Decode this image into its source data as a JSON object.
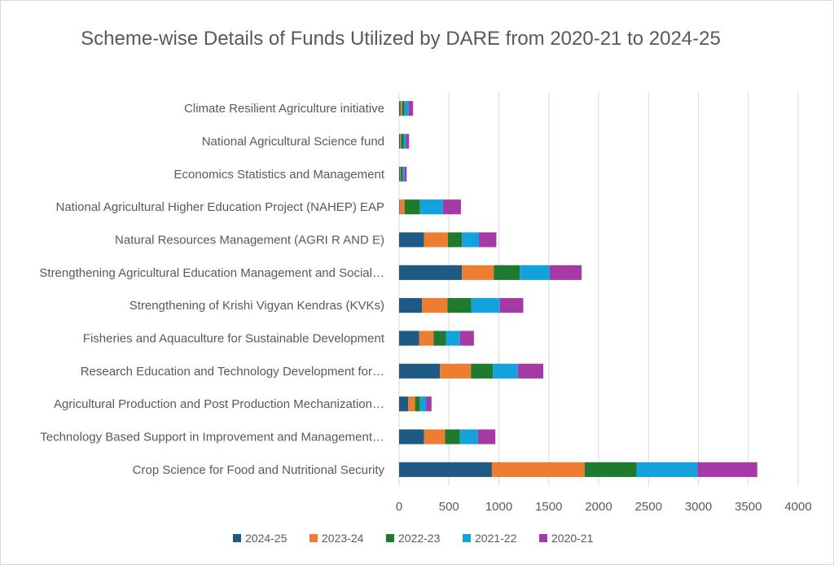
{
  "chart_data": {
    "type": "bar",
    "orientation": "horizontal",
    "stacked": true,
    "title": "Scheme-wise Details of Funds Utilized by DARE from 2020-21 to 2024-25",
    "categories": [
      "Crop Science for Food and Nutritional Security",
      "Technology Based Support in Improvement and Management…",
      "Agricultural Production and Post Production Mechanization…",
      "Research Education and Technology Development for…",
      "Fisheries and Aquaculture for Sustainable Development",
      "Strengthening of Krishi Vigyan Kendras (KVKs)",
      "Strengthening Agricultural Education Management and Social…",
      "Natural Resources Management (AGRI R AND E)",
      "National Agricultural Higher Education Project (NAHEP) EAP",
      "Economics Statistics and Management",
      "National Agricultural Science fund",
      "Climate Resilient Agriculture initiative"
    ],
    "series": [
      {
        "name": "2024-25",
        "color": "#1f5a85",
        "values": [
          930,
          250,
          90,
          410,
          200,
          230,
          630,
          250,
          5,
          8,
          10,
          15
        ]
      },
      {
        "name": "2023-24",
        "color": "#ee7d31",
        "values": [
          930,
          210,
          70,
          310,
          145,
          255,
          320,
          240,
          50,
          8,
          10,
          15
        ]
      },
      {
        "name": "2022-23",
        "color": "#1f7a30",
        "values": [
          520,
          150,
          50,
          220,
          125,
          240,
          260,
          140,
          155,
          20,
          25,
          25
        ]
      },
      {
        "name": "2021-22",
        "color": "#13a2dc",
        "values": [
          610,
          180,
          60,
          250,
          140,
          285,
          300,
          170,
          230,
          20,
          25,
          40
        ]
      },
      {
        "name": "2020-21",
        "color": "#a53aa5",
        "values": [
          600,
          175,
          55,
          255,
          140,
          235,
          320,
          175,
          180,
          20,
          30,
          45
        ]
      }
    ],
    "xlim": [
      0,
      4000
    ],
    "xticks": [
      0,
      500,
      1000,
      1500,
      2000,
      2500,
      3000,
      3500,
      4000
    ],
    "grid": true,
    "legend_position": "bottom"
  }
}
